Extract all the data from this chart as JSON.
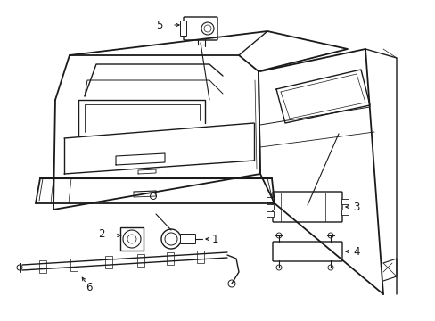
{
  "background_color": "#ffffff",
  "line_color": "#1a1a1a",
  "label_fontsize": 8.5,
  "fig_width": 4.89,
  "fig_height": 3.6,
  "dpi": 100
}
